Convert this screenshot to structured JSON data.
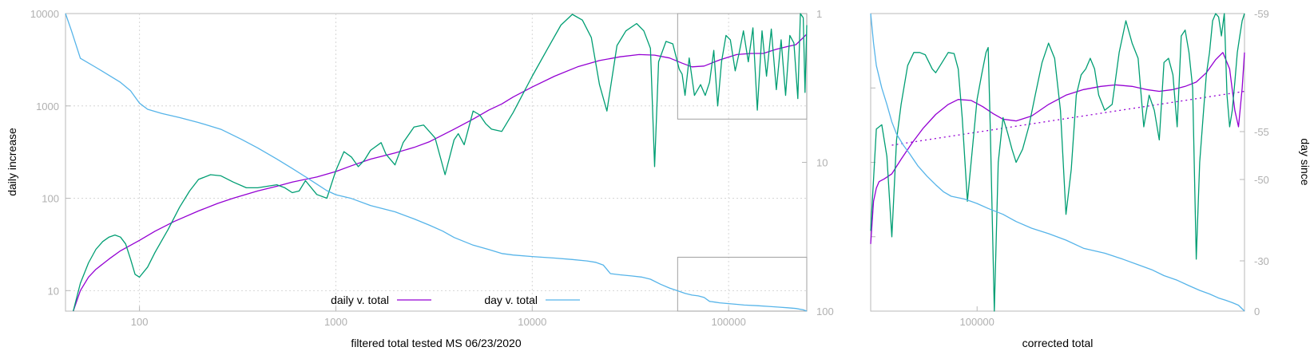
{
  "chart_data": [
    {
      "type": "line",
      "xlabel": "filtered total tested MS 06/23/2020",
      "ylabel": "daily increase",
      "y2label": "",
      "xscale": "log",
      "yscale": "log",
      "xlim": [
        42,
        250000
      ],
      "ylim": [
        6,
        10000
      ],
      "y2lim": [
        1,
        100
      ],
      "y2_reversed": true,
      "grid": true,
      "legend_position": "bottom-center",
      "x_ticks": [
        100,
        1000,
        10000,
        100000
      ],
      "y_ticks": [
        10,
        100,
        1000,
        10000
      ],
      "y2_ticks": [
        1,
        10,
        100
      ],
      "zoom_boxes": [
        {
          "x_range": [
            55000,
            250000
          ],
          "y_range": [
            720,
            10000
          ]
        },
        {
          "x_range": [
            55000,
            250000
          ],
          "y_range": [
            6,
            23
          ]
        }
      ],
      "series": [
        {
          "name": "daily v. total",
          "color": "#9400d3",
          "axis": "y",
          "x": [
            46,
            50,
            55,
            60,
            70,
            80,
            100,
            120,
            150,
            200,
            250,
            300,
            400,
            500,
            600,
            800,
            1000,
            1200,
            1500,
            2000,
            2500,
            3000,
            4000,
            5000,
            6000,
            7000,
            8000,
            10000,
            13000,
            17000,
            22000,
            28000,
            35000,
            42000,
            50000,
            58000,
            65000,
            75000,
            90000,
            110000,
            130000,
            150000,
            175000,
            200000,
            220000,
            240000,
            250000
          ],
          "values": [
            6,
            10,
            14,
            17,
            22,
            27,
            35,
            44,
            56,
            73,
            88,
            100,
            120,
            135,
            150,
            170,
            195,
            225,
            265,
            310,
            355,
            410,
            560,
            720,
            900,
            1050,
            1250,
            1600,
            2100,
            2650,
            3100,
            3400,
            3600,
            3550,
            3300,
            2900,
            2650,
            2700,
            3150,
            3600,
            3700,
            3700,
            4100,
            4400,
            4600,
            5500,
            6000
          ]
        },
        {
          "name": "",
          "color": "#009e73",
          "axis": "y",
          "x": [
            46,
            50,
            55,
            60,
            65,
            70,
            75,
            80,
            85,
            90,
            95,
            100,
            110,
            120,
            140,
            160,
            180,
            200,
            230,
            260,
            300,
            350,
            400,
            500,
            550,
            600,
            650,
            700,
            800,
            900,
            1000,
            1100,
            1200,
            1300,
            1400,
            1500,
            1700,
            1800,
            2000,
            2200,
            2500,
            2800,
            3200,
            3600,
            4000,
            4200,
            4500,
            5000,
            5400,
            5800,
            6200,
            7000,
            8000,
            10000,
            12000,
            14000,
            16000,
            18000,
            20000,
            22000,
            24000,
            27000,
            30000,
            34000,
            37000,
            40000,
            42000,
            44000,
            48000,
            52000,
            56000,
            58000,
            60000,
            63000,
            67000,
            72000,
            76000,
            80000,
            84000,
            88000,
            92000,
            97000,
            102000,
            108000,
            113000,
            119000,
            126000,
            133000,
            140000,
            148000,
            156000,
            165000,
            175000,
            185000,
            195000,
            205000,
            215000,
            225000,
            232000,
            240000,
            245000,
            250000
          ],
          "values": [
            6,
            12,
            20,
            28,
            34,
            38,
            40,
            38,
            32,
            22,
            15,
            14,
            18,
            26,
            46,
            80,
            120,
            160,
            180,
            175,
            150,
            130,
            130,
            140,
            130,
            115,
            120,
            155,
            110,
            100,
            200,
            320,
            280,
            220,
            260,
            330,
            400,
            300,
            230,
            400,
            590,
            620,
            450,
            180,
            430,
            500,
            380,
            880,
            800,
            640,
            560,
            530,
            850,
            2100,
            4200,
            7500,
            9800,
            8500,
            5500,
            1700,
            880,
            4500,
            6500,
            7800,
            6500,
            4200,
            220,
            3000,
            5000,
            4700,
            2500,
            2200,
            1300,
            3300,
            1300,
            1700,
            1300,
            1800,
            4000,
            1000,
            3000,
            5800,
            5200,
            2400,
            3700,
            6500,
            3000,
            7000,
            900,
            6500,
            2100,
            6800,
            1500,
            5200,
            1300,
            5800,
            4800,
            1200,
            10000,
            9000,
            1400,
            7500
          ]
        },
        {
          "name": "day v. total",
          "color": "#56b4e9",
          "axis": "y2",
          "x": [
            42,
            45,
            50,
            60,
            70,
            80,
            90,
            100,
            110,
            130,
            160,
            200,
            260,
            330,
            400,
            500,
            600,
            700,
            800,
            900,
            1000,
            1200,
            1500,
            2000,
            2500,
            3000,
            3500,
            4000,
            5000,
            6000,
            7000,
            8000,
            10000,
            13000,
            16000,
            19000,
            21000,
            23000,
            25000,
            28000,
            32000,
            36000,
            40000,
            45000,
            50000,
            55000,
            60000,
            65000,
            70000,
            75000,
            80000,
            85000,
            90000,
            100000,
            110000,
            120000,
            140000,
            160000,
            180000,
            200000,
            220000,
            240000,
            250000
          ],
          "values": [
            1,
            1.3,
            2,
            2.3,
            2.6,
            2.9,
            3.3,
            4,
            4.4,
            4.7,
            5,
            5.4,
            6,
            7,
            8,
            9.5,
            11,
            12.5,
            14,
            15.5,
            16.5,
            17.5,
            19.5,
            21.5,
            24,
            26.5,
            29,
            32,
            36,
            38.5,
            41,
            42,
            43,
            44,
            45,
            46,
            47,
            49,
            56,
            57,
            58,
            59,
            61,
            66,
            70,
            73,
            76,
            78,
            79,
            81,
            86,
            87,
            88,
            89,
            90,
            91,
            92,
            93,
            94,
            95,
            96,
            98,
            100
          ]
        }
      ]
    },
    {
      "type": "line",
      "xlabel": "corrected total",
      "ylabel": "",
      "y2label": "day since",
      "xscale": "log",
      "yscale": "log",
      "xlim": [
        40000,
        1000000
      ],
      "ylim": [
        1,
        10000
      ],
      "y2_ticks": [
        -59,
        -55,
        -50,
        -30,
        0
      ],
      "x_ticks": [
        100000
      ],
      "grid": false,
      "series": [
        {
          "name": "",
          "color": "#9400d3",
          "axis": "y",
          "x": [
            40000,
            41000,
            42000,
            43000,
            45000,
            48000,
            52000,
            57000,
            63000,
            70000,
            78000,
            85000,
            95000,
            105000,
            115000,
            125000,
            140000,
            160000,
            185000,
            215000,
            250000,
            290000,
            330000,
            380000,
            430000,
            480000,
            540000,
            600000,
            660000,
            720000,
            780000,
            830000,
            880000,
            920000,
            950000,
            980000,
            1000000
          ],
          "values": [
            8,
            30,
            45,
            55,
            60,
            70,
            110,
            180,
            290,
            440,
            600,
            700,
            680,
            560,
            450,
            380,
            360,
            420,
            600,
            800,
            950,
            1050,
            1100,
            1050,
            950,
            900,
            950,
            1050,
            1200,
            1600,
            2400,
            3000,
            1800,
            500,
            300,
            1000,
            3000
          ]
        },
        {
          "name": "",
          "color": "#9400d3",
          "axis": "y",
          "dashed": true,
          "x": [
            48000,
            1000000
          ],
          "values": [
            170,
            900
          ]
        },
        {
          "name": "",
          "color": "#009e73",
          "axis": "y",
          "x": [
            40000,
            42000,
            44000,
            46000,
            48000,
            50000,
            52000,
            55000,
            58000,
            61000,
            64000,
            68000,
            70000,
            74000,
            78000,
            82000,
            85000,
            88000,
            92000,
            96000,
            100000,
            104000,
            108000,
            110000,
            112000,
            116000,
            120000,
            125000,
            130000,
            135000,
            140000,
            148000,
            156000,
            165000,
            175000,
            185000,
            195000,
            205000,
            215000,
            225000,
            235000,
            245000,
            255000,
            265000,
            275000,
            285000,
            300000,
            320000,
            340000,
            360000,
            380000,
            400000,
            420000,
            440000,
            460000,
            480000,
            500000,
            520000,
            540000,
            560000,
            580000,
            600000,
            620000,
            640000,
            660000,
            680000,
            700000,
            720000,
            740000,
            760000,
            780000,
            800000,
            820000,
            840000,
            860000,
            880000,
            900000,
            920000,
            940000,
            960000,
            980000,
            1000000
          ],
          "values": [
            12,
            280,
            320,
            120,
            10,
            200,
            600,
            2000,
            3000,
            3000,
            2800,
            1800,
            1600,
            2200,
            3000,
            2900,
            1800,
            400,
            30,
            150,
            700,
            1500,
            3000,
            3500,
            300,
            1,
            100,
            400,
            250,
            150,
            100,
            150,
            300,
            800,
            2200,
            4000,
            2500,
            500,
            20,
            80,
            800,
            1500,
            1800,
            2500,
            1800,
            800,
            500,
            600,
            3000,
            8000,
            4000,
            2500,
            300,
            800,
            500,
            200,
            2200,
            2500,
            1500,
            300,
            5000,
            6000,
            3000,
            1000,
            5,
            100,
            400,
            1500,
            3000,
            8000,
            10000,
            9000,
            5000,
            10000,
            800,
            300,
            500,
            1200,
            3000,
            5000,
            8000,
            10000
          ]
        },
        {
          "name": "",
          "color": "#56b4e9",
          "axis": "y",
          "x": [
            40000,
            41000,
            42000,
            44000,
            46000,
            48000,
            50000,
            53000,
            56000,
            60000,
            65000,
            70000,
            75000,
            80000,
            90000,
            100000,
            110000,
            125000,
            140000,
            160000,
            185000,
            215000,
            250000,
            300000,
            350000,
            400000,
            450000,
            500000,
            560000,
            620000,
            680000,
            740000,
            800000,
            850000,
            900000,
            950000,
            1000000
          ],
          "values": [
            10000,
            4000,
            2000,
            1000,
            600,
            350,
            240,
            170,
            130,
            90,
            65,
            50,
            40,
            35,
            32,
            28,
            24,
            20,
            16,
            13,
            11,
            9,
            7,
            6,
            5,
            4.2,
            3.6,
            3,
            2.6,
            2.2,
            1.9,
            1.7,
            1.5,
            1.4,
            1.3,
            1.2,
            1
          ]
        }
      ]
    }
  ]
}
